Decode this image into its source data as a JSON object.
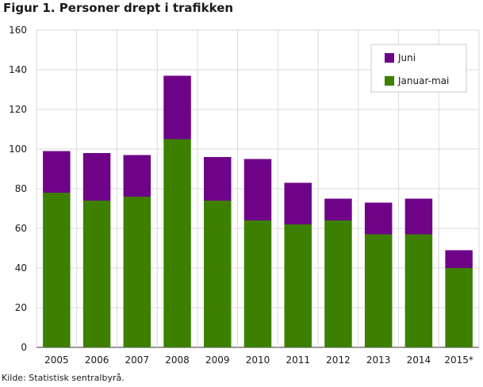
{
  "title": "Figur 1. Personer drept i trafikken",
  "source": "Kilde: Statistisk sentralbyrå.",
  "colors": {
    "juni": "#6e0388",
    "januar_mai": "#3d8000",
    "grid": "#d9d9d9",
    "axis": "#333333"
  },
  "chart_data": {
    "type": "bar",
    "stacked": true,
    "title": "Figur 1. Personer drept i trafikken",
    "xlabel": "",
    "ylabel": "",
    "categories": [
      "2005",
      "2006",
      "2007",
      "2008",
      "2009",
      "2010",
      "2011",
      "2012",
      "2013",
      "2014",
      "2015*"
    ],
    "series": [
      {
        "name": "Januar-mai",
        "values": [
          78,
          74,
          76,
          105,
          74,
          64,
          62,
          64,
          57,
          57,
          40
        ]
      },
      {
        "name": "Juni",
        "values": [
          21,
          24,
          21,
          32,
          22,
          31,
          21,
          11,
          16,
          18,
          9
        ]
      }
    ],
    "ylim": [
      0,
      160
    ],
    "yticks": [
      0,
      20,
      40,
      60,
      80,
      100,
      120,
      140,
      160
    ],
    "grid": true,
    "legend": {
      "placement": "top-right",
      "entries": [
        "Juni",
        "Januar-mai"
      ]
    }
  }
}
